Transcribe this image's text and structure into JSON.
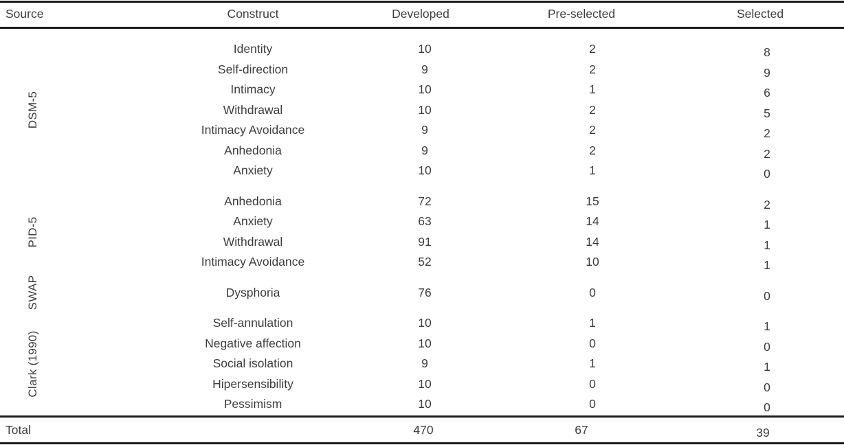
{
  "table": {
    "headers": {
      "source": "Source",
      "construct": "Construct",
      "developed": "Developed",
      "preselected": "Pre-selected",
      "selected": "Selected"
    },
    "groups": [
      {
        "source": "DSM-5",
        "rows": [
          {
            "construct": "Identity",
            "developed": "10",
            "preselected": "2",
            "selected": "8"
          },
          {
            "construct": "Self-direction",
            "developed": "9",
            "preselected": "2",
            "selected": "9"
          },
          {
            "construct": "Intimacy",
            "developed": "10",
            "preselected": "1",
            "selected": "6"
          },
          {
            "construct": "Withdrawal",
            "developed": "10",
            "preselected": "2",
            "selected": "5"
          },
          {
            "construct": "Intimacy Avoidance",
            "developed": "9",
            "preselected": "2",
            "selected": "2"
          },
          {
            "construct": "Anhedonia",
            "developed": "9",
            "preselected": "2",
            "selected": "2"
          },
          {
            "construct": "Anxiety",
            "developed": "10",
            "preselected": "1",
            "selected": "0"
          }
        ]
      },
      {
        "source": "PID-5",
        "rows": [
          {
            "construct": "Anhedonia",
            "developed": "72",
            "preselected": "15",
            "selected": "2"
          },
          {
            "construct": "Anxiety",
            "developed": "63",
            "preselected": "14",
            "selected": "1"
          },
          {
            "construct": "Withdrawal",
            "developed": "91",
            "preselected": "14",
            "selected": "1"
          },
          {
            "construct": "Intimacy Avoidance",
            "developed": "52",
            "preselected": "10",
            "selected": "1"
          }
        ]
      },
      {
        "source": "SWAP",
        "rows": [
          {
            "construct": "Dysphoria",
            "developed": "76",
            "preselected": "0",
            "selected": "0"
          }
        ]
      },
      {
        "source": "Clark (1990)",
        "rows": [
          {
            "construct": "Self-annulation",
            "developed": "10",
            "preselected": "1",
            "selected": "1"
          },
          {
            "construct": "Negative affection",
            "developed": "10",
            "preselected": "0",
            "selected": "0"
          },
          {
            "construct": "Social isolation",
            "developed": "9",
            "preselected": "1",
            "selected": "1"
          },
          {
            "construct": "Hipersensibility",
            "developed": "10",
            "preselected": "0",
            "selected": "0"
          },
          {
            "construct": "Pessimism",
            "developed": "10",
            "preselected": "0",
            "selected": "0"
          }
        ]
      }
    ],
    "total": {
      "label": "Total",
      "developed": "470",
      "preselected": "67",
      "selected": "39"
    },
    "colors": {
      "text": "#3d3d3d",
      "rule": "#1b1b1b",
      "background": "#ffffff"
    }
  }
}
